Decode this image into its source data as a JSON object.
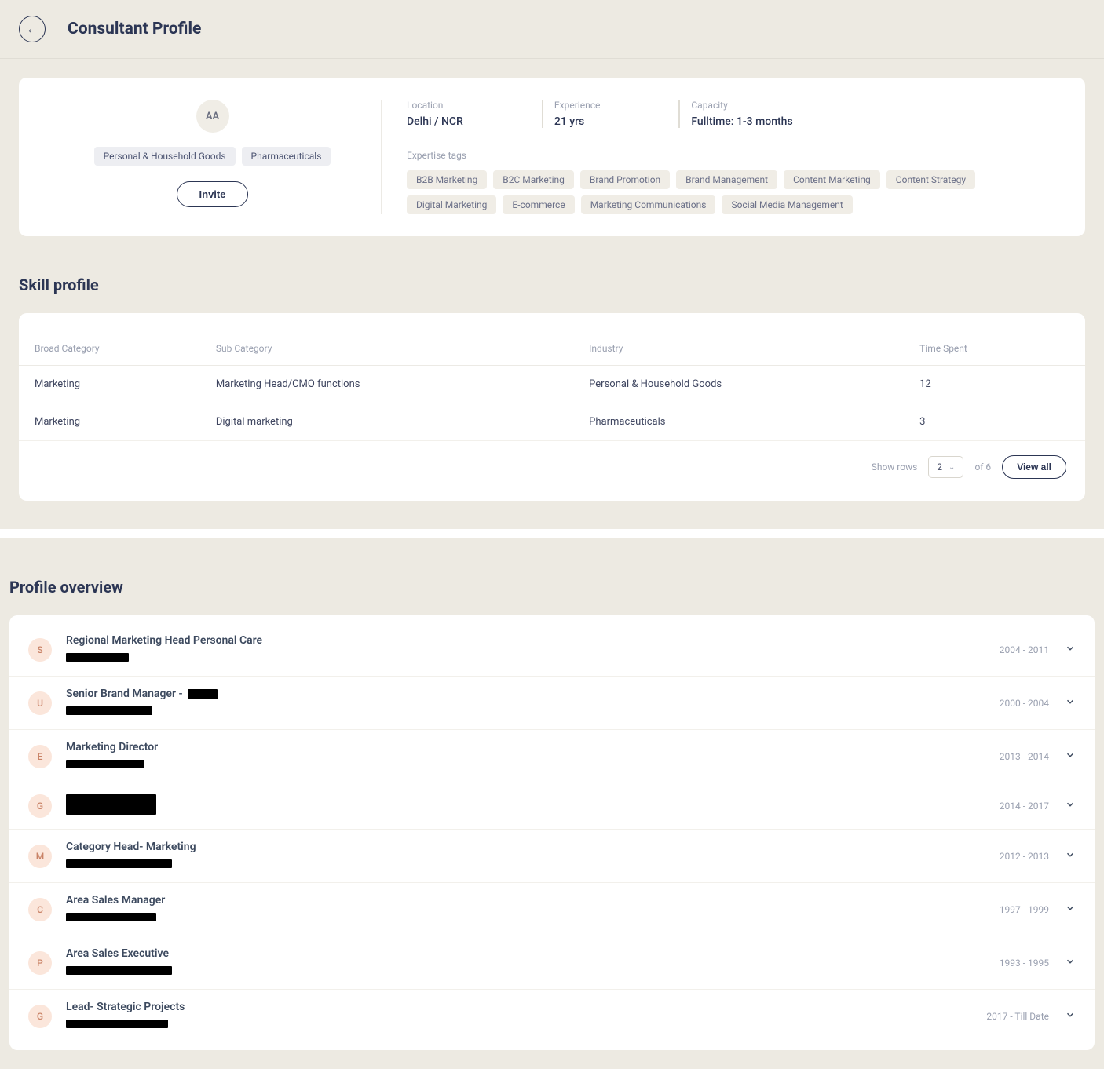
{
  "header": {
    "title": "Consultant Profile"
  },
  "profile": {
    "avatar_initials": "AA",
    "industry_tags": [
      "Personal & Household Goods",
      "Pharmaceuticals"
    ],
    "invite_label": "Invite",
    "stats": {
      "location_label": "Location",
      "location_value": "Delhi / NCR",
      "experience_label": "Experience",
      "experience_value": "21 yrs",
      "capacity_label": "Capacity",
      "capacity_value": "Fulltime: 1-3 months"
    },
    "expertise_label": "Expertise tags",
    "expertise_tags": [
      "B2B Marketing",
      "B2C Marketing",
      "Brand Promotion",
      "Brand Management",
      "Content Marketing",
      "Content Strategy",
      "Digital Marketing",
      "E-commerce",
      "Marketing Communications",
      "Social Media Management"
    ]
  },
  "skills": {
    "section_title": "Skill profile",
    "columns": [
      "Broad Category",
      "Sub Category",
      "Industry",
      "Time Spent"
    ],
    "column_widths": [
      "17%",
      "35%",
      "31%",
      "17%"
    ],
    "rows": [
      [
        "Marketing",
        "Marketing Head/CMO functions",
        "Personal & Household Goods",
        "12"
      ],
      [
        "Marketing",
        "Digital marketing",
        "Pharmaceuticals",
        "3"
      ]
    ],
    "footer": {
      "show_rows_label": "Show rows",
      "rows_value": "2",
      "of_label": "of 6",
      "view_all_label": "View all"
    }
  },
  "overview": {
    "section_title": "Profile overview",
    "badge_colors": {
      "S": {
        "bg": "#fbe6db",
        "fg": "#c98266"
      },
      "U": {
        "bg": "#fbe6db",
        "fg": "#c98266"
      },
      "E": {
        "bg": "#fbe6db",
        "fg": "#c98266"
      },
      "G": {
        "bg": "#fbe6db",
        "fg": "#c98266"
      },
      "M": {
        "bg": "#fbe6db",
        "fg": "#c98266"
      },
      "C": {
        "bg": "#fbe6db",
        "fg": "#c98266"
      },
      "P": {
        "bg": "#fbe6db",
        "fg": "#c98266"
      }
    },
    "items": [
      {
        "badge": "S",
        "title": "Regional Marketing Head Personal Care",
        "title_redacted_w": 0,
        "sub_redacted_w": 80,
        "dates": "2004 - 2011"
      },
      {
        "badge": "U",
        "title": "Senior Brand Manager - ",
        "title_redacted_w": 38,
        "sub_redacted_w": 110,
        "dates": "2000 - 2004"
      },
      {
        "badge": "E",
        "title": "Marketing Director",
        "title_redacted_w": 0,
        "sub_redacted_w": 100,
        "dates": "2013 - 2014"
      },
      {
        "badge": "G",
        "title": "",
        "title_redacted_w": 115,
        "title_redacted_h": 26,
        "sub_redacted_w": 0,
        "dates": "2014 - 2017"
      },
      {
        "badge": "M",
        "title": "Category Head- Marketing",
        "title_redacted_w": 0,
        "sub_redacted_w": 135,
        "dates": "2012 - 2013"
      },
      {
        "badge": "C",
        "title": "Area Sales Manager",
        "title_redacted_w": 0,
        "sub_redacted_w": 115,
        "dates": "1997 - 1999"
      },
      {
        "badge": "P",
        "title": "Area Sales Executive",
        "title_redacted_w": 0,
        "sub_redacted_w": 135,
        "dates": "1993 - 1995"
      },
      {
        "badge": "G",
        "title": "Lead- Strategic Projects",
        "title_redacted_w": 0,
        "sub_redacted_w": 130,
        "dates": "2017 - Till Date"
      }
    ]
  }
}
